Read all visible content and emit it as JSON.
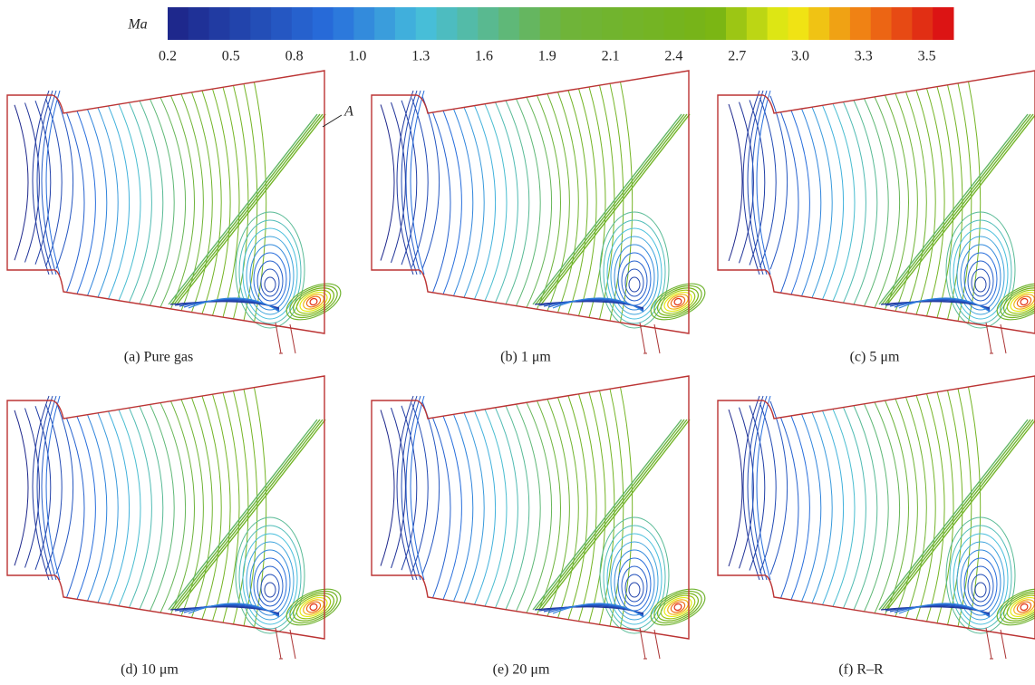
{
  "colorbar": {
    "label": "Ma",
    "ticks": [
      "0.2",
      "0.5",
      "0.8",
      "1.0",
      "1.3",
      "1.6",
      "1.9",
      "2.1",
      "2.4",
      "2.7",
      "3.0",
      "3.3",
      "3.5"
    ]
  },
  "annotation": "A",
  "panels": [
    {
      "caption": "(a) Pure gas"
    },
    {
      "caption": "(b) 1 μm"
    },
    {
      "caption": "(c) 5 μm"
    },
    {
      "caption": "(d) 10 μm"
    },
    {
      "caption": "(e) 20 μm"
    },
    {
      "caption": "(f) R–R"
    }
  ]
}
